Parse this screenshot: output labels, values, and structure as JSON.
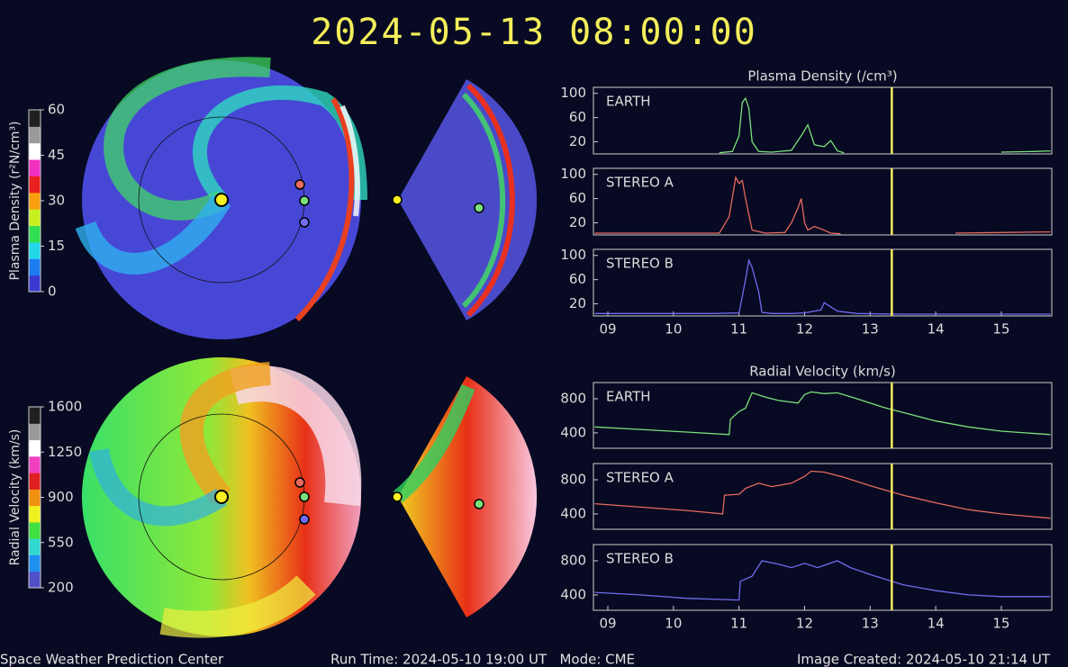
{
  "header": {
    "title": "2024-05-13 08:00:00"
  },
  "footer": {
    "left": "Space Weather Prediction Center",
    "middle": "Run Time: 2024-05-10 19:00 UT   Mode: CME",
    "right": "Image Created: 2024-05-10 21:14 UT"
  },
  "chart_data": [
    {
      "type": "line",
      "title": "Plasma Density (/cm³)",
      "xlim": [
        8.78,
        15.77
      ],
      "ylim": [
        0,
        110
      ],
      "yticks": [
        20,
        60,
        100
      ],
      "marker_x": 13.33,
      "x": [
        10.7,
        10.9,
        11.0,
        11.05,
        11.1,
        11.15,
        11.2,
        11.3,
        11.5,
        11.8,
        11.95,
        12.05,
        12.15,
        12.3,
        12.4,
        12.5,
        12.6,
        13.0,
        15.0,
        15.5,
        15.75
      ],
      "series": [
        {
          "name": "EARTH",
          "color": "#7be07b",
          "values": [
            2,
            4,
            30,
            85,
            92,
            75,
            20,
            4,
            3,
            6,
            30,
            48,
            15,
            12,
            22,
            5,
            2,
            null,
            3,
            4,
            5
          ]
        }
      ]
    },
    {
      "type": "line",
      "xlim": [
        8.78,
        15.77
      ],
      "ylim": [
        0,
        110
      ],
      "yticks": [
        20,
        60,
        100
      ],
      "marker_x": 13.33,
      "x": [
        8.8,
        10.7,
        10.85,
        10.95,
        11.0,
        11.05,
        11.1,
        11.2,
        11.4,
        11.7,
        11.8,
        11.9,
        11.95,
        12.0,
        12.05,
        12.15,
        12.25,
        12.4,
        12.55,
        13.0,
        14.3,
        15.0,
        15.75
      ],
      "series": [
        {
          "name": "STEREO A",
          "color": "#e86a5e",
          "values": [
            3,
            3,
            30,
            95,
            85,
            90,
            60,
            8,
            3,
            4,
            20,
            45,
            60,
            20,
            8,
            14,
            10,
            3,
            2,
            null,
            3,
            4,
            5
          ]
        }
      ]
    },
    {
      "type": "line",
      "xlim": [
        8.78,
        15.77
      ],
      "ylim": [
        0,
        110
      ],
      "yticks": [
        20,
        60,
        100
      ],
      "marker_x": 13.33,
      "xticks": [
        {
          "value": 9,
          "label": "09"
        },
        10,
        11,
        12,
        13,
        14,
        15
      ],
      "x": [
        8.8,
        10.6,
        11.0,
        11.1,
        11.15,
        11.2,
        11.3,
        11.35,
        11.5,
        11.8,
        12.0,
        12.25,
        12.3,
        12.5,
        12.8,
        13.5,
        15.75
      ],
      "series": [
        {
          "name": "STEREO B",
          "color": "#6f6cf0",
          "values": [
            4,
            4,
            5,
            60,
            92,
            80,
            40,
            6,
            4,
            4,
            5,
            10,
            22,
            8,
            4,
            3,
            3
          ]
        }
      ]
    },
    {
      "type": "line",
      "title": "Radial Velocity (km/s)",
      "xlim": [
        8.78,
        15.77
      ],
      "ylim": [
        220,
        990
      ],
      "yticks": [
        400,
        800
      ],
      "marker_x": 13.33,
      "x": [
        8.8,
        9.5,
        10.2,
        10.85,
        10.87,
        11.0,
        11.1,
        11.2,
        11.4,
        11.6,
        11.9,
        12.0,
        12.1,
        12.3,
        12.5,
        12.8,
        13.2,
        13.6,
        14.0,
        14.5,
        15.0,
        15.75
      ],
      "series": [
        {
          "name": "EARTH",
          "color": "#7be07b",
          "values": [
            470,
            440,
            410,
            380,
            560,
            650,
            690,
            870,
            820,
            780,
            750,
            850,
            880,
            860,
            870,
            800,
            700,
            620,
            540,
            470,
            420,
            380
          ]
        }
      ]
    },
    {
      "type": "line",
      "xlim": [
        8.78,
        15.77
      ],
      "ylim": [
        220,
        990
      ],
      "yticks": [
        400,
        800
      ],
      "marker_x": 13.33,
      "x": [
        8.8,
        9.5,
        10.2,
        10.75,
        10.78,
        11.0,
        11.1,
        11.3,
        11.5,
        11.8,
        12.0,
        12.1,
        12.3,
        12.6,
        13.0,
        13.5,
        14.0,
        14.5,
        15.0,
        15.75
      ],
      "series": [
        {
          "name": "STEREO A",
          "color": "#e86a5e",
          "values": [
            520,
            480,
            440,
            400,
            620,
            630,
            700,
            760,
            720,
            760,
            840,
            900,
            890,
            830,
            730,
            620,
            530,
            450,
            400,
            350
          ]
        }
      ]
    },
    {
      "type": "line",
      "xlim": [
        8.78,
        15.77
      ],
      "ylim": [
        220,
        990
      ],
      "yticks": [
        400,
        800
      ],
      "marker_x": 13.33,
      "xticks": [
        {
          "value": 9,
          "label": "09"
        },
        10,
        11,
        12,
        13,
        14,
        15
      ],
      "x": [
        8.8,
        9.5,
        10.2,
        11.0,
        11.02,
        11.2,
        11.35,
        11.6,
        11.8,
        12.0,
        12.2,
        12.5,
        12.7,
        13.0,
        13.5,
        14.0,
        14.5,
        15.0,
        15.75
      ],
      "series": [
        {
          "name": "STEREO B",
          "color": "#6f6cf0",
          "values": [
            430,
            400,
            360,
            340,
            560,
            620,
            800,
            760,
            720,
            770,
            720,
            800,
            720,
            640,
            520,
            450,
            400,
            380,
            380
          ]
        }
      ]
    },
    {
      "type": "colorbar",
      "label": "Plasma Density (r²N/cm³)",
      "ylim": [
        0,
        60
      ],
      "yticks": [
        0,
        15,
        30,
        45,
        60
      ],
      "colors": [
        "#3a3ad0",
        "#1c7cf0",
        "#22d8e8",
        "#30e050",
        "#c8f020",
        "#f8a010",
        "#e82020",
        "#f030c0",
        "#ffffff",
        "#9a9a9a",
        "#202020"
      ]
    },
    {
      "type": "colorbar",
      "label": "Radial Velocity (km/s)",
      "ylim": [
        200,
        1600
      ],
      "yticks": [
        200,
        550,
        900,
        1250,
        1600
      ],
      "colors": [
        "#5050c8",
        "#2090f0",
        "#30d8d0",
        "#40e040",
        "#f0f020",
        "#f09010",
        "#e02020",
        "#f040c0",
        "#ffffff",
        "#9a9a9a",
        "#202020"
      ]
    }
  ]
}
